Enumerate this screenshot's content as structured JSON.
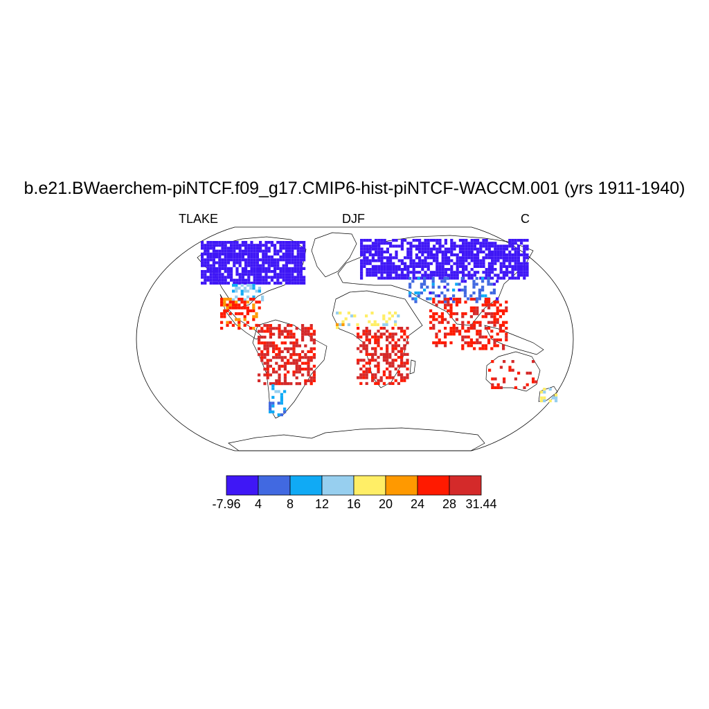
{
  "title": "b.e21.BWaerchem-piNTCF.f09_g17.CMIP6-hist-piNTCF-WACCM.001 (yrs 1911-1940)",
  "variable": "TLAKE",
  "season": "DJF",
  "units": "C",
  "colorbar": {
    "colors": [
      "#3f17f6",
      "#4169e1",
      "#10aaf5",
      "#97cfef",
      "#ffee66",
      "#ff9900",
      "#ff1a00",
      "#d42a2a"
    ],
    "labels": [
      "-7.96",
      "4",
      "8",
      "12",
      "16",
      "20",
      "24",
      "28",
      "31.44"
    ]
  },
  "map_data": {
    "projection": "robinson",
    "regions": [
      {
        "name": "North America high latitudes",
        "value": -5
      },
      {
        "name": "Northern Eurasia",
        "value": -5
      },
      {
        "name": "Central Asia",
        "value": 6
      },
      {
        "name": "Southeastern United States",
        "value": 12
      },
      {
        "name": "Mexico / Central America",
        "value": 25
      },
      {
        "name": "Amazon basin",
        "value": 29
      },
      {
        "name": "Southern South America",
        "value": 10
      },
      {
        "name": "Sahel",
        "value": 18
      },
      {
        "name": "Central Africa",
        "value": 29
      },
      {
        "name": "India / Southeast Asia",
        "value": 27
      },
      {
        "name": "Australia",
        "value": 28
      },
      {
        "name": "New Zealand",
        "value": 16
      }
    ]
  }
}
